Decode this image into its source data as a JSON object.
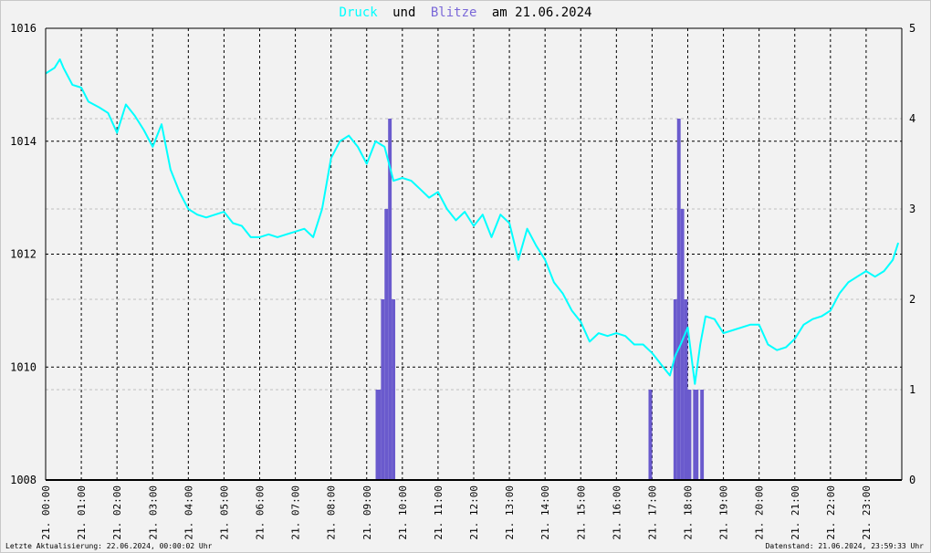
{
  "title": {
    "word1": "Druck",
    "word2": "und",
    "word3": "Blitze",
    "word4": "am 21.06.2024",
    "color1": "#00ffff",
    "color3": "#7a68d8",
    "color_text": "#000000"
  },
  "footer": {
    "left": "Letzte Aktualisierung: 22.06.2024, 00:00:02 Uhr",
    "right": "Datenstand: 21.06.2024, 23:59:33 Uhr"
  },
  "chart_data": {
    "type": "line",
    "x_tick_labels": [
      "21. 00:00",
      "21. 01:00",
      "21. 02:00",
      "21. 03:00",
      "21. 04:00",
      "21. 05:00",
      "21. 06:00",
      "21. 07:00",
      "21. 08:00",
      "21. 09:00",
      "21. 10:00",
      "21. 11:00",
      "21. 12:00",
      "21. 13:00",
      "21. 14:00",
      "21. 15:00",
      "21. 16:00",
      "21. 17:00",
      "21. 18:00",
      "21. 19:00",
      "21. 20:00",
      "21. 21:00",
      "21. 22:00",
      "21. 23:00"
    ],
    "xlim_hours": [
      0,
      24
    ],
    "y_left": {
      "ticks": [
        1008,
        1010,
        1012,
        1014,
        1016
      ],
      "ylim": [
        1008,
        1016
      ]
    },
    "y_right": {
      "ticks": [
        0,
        1,
        2,
        3,
        4,
        5
      ],
      "ylim": [
        0,
        5
      ]
    },
    "grid": true,
    "series": [
      {
        "name": "Druck",
        "color": "#00ffff",
        "axis": "left",
        "x": [
          0,
          0.25,
          0.4,
          0.5,
          0.75,
          1.0,
          1.2,
          1.5,
          1.75,
          2.0,
          2.25,
          2.5,
          2.75,
          3.0,
          3.25,
          3.5,
          3.75,
          4.0,
          4.25,
          4.5,
          4.75,
          5.0,
          5.25,
          5.5,
          5.75,
          6.0,
          6.25,
          6.5,
          6.75,
          7.0,
          7.25,
          7.5,
          7.75,
          8.0,
          8.25,
          8.5,
          8.75,
          9.0,
          9.25,
          9.5,
          9.75,
          10.0,
          10.25,
          10.5,
          10.75,
          11.0,
          11.25,
          11.5,
          11.75,
          12.0,
          12.25,
          12.5,
          12.75,
          13.0,
          13.25,
          13.5,
          13.75,
          14.0,
          14.25,
          14.5,
          14.75,
          15.0,
          15.25,
          15.5,
          15.75,
          16.0,
          16.25,
          16.5,
          16.75,
          17.0,
          17.25,
          17.5,
          17.65,
          17.8,
          18.0,
          18.2,
          18.35,
          18.5,
          18.75,
          19.0,
          19.25,
          19.5,
          19.75,
          20.0,
          20.25,
          20.5,
          20.75,
          21.0,
          21.25,
          21.5,
          21.75,
          22.0,
          22.25,
          22.5,
          22.75,
          23.0,
          23.25,
          23.5,
          23.75,
          23.9
        ],
        "y": [
          1015.2,
          1015.3,
          1015.45,
          1015.3,
          1015.0,
          1014.95,
          1014.7,
          1014.6,
          1014.5,
          1014.15,
          1014.65,
          1014.45,
          1014.2,
          1013.9,
          1014.3,
          1013.5,
          1013.1,
          1012.8,
          1012.7,
          1012.65,
          1012.7,
          1012.75,
          1012.55,
          1012.5,
          1012.3,
          1012.3,
          1012.35,
          1012.3,
          1012.35,
          1012.4,
          1012.45,
          1012.3,
          1012.8,
          1013.7,
          1014.0,
          1014.1,
          1013.9,
          1013.6,
          1014.0,
          1013.9,
          1013.3,
          1013.35,
          1013.3,
          1013.15,
          1013.0,
          1013.1,
          1012.8,
          1012.6,
          1012.75,
          1012.5,
          1012.7,
          1012.3,
          1012.7,
          1012.55,
          1011.9,
          1012.45,
          1012.15,
          1011.9,
          1011.5,
          1011.3,
          1011.0,
          1010.8,
          1010.45,
          1010.6,
          1010.55,
          1010.6,
          1010.55,
          1010.4,
          1010.4,
          1010.25,
          1010.05,
          1009.85,
          1010.2,
          1010.4,
          1010.7,
          1009.7,
          1010.4,
          1010.9,
          1010.85,
          1010.6,
          1010.65,
          1010.7,
          1010.75,
          1010.75,
          1010.4,
          1010.3,
          1010.35,
          1010.5,
          1010.75,
          1010.85,
          1010.9,
          1011.0,
          1011.3,
          1011.5,
          1011.6,
          1011.7,
          1011.6,
          1011.7,
          1011.9,
          1012.2
        ]
      },
      {
        "name": "Blitze",
        "color": "#6a5acd",
        "axis": "right",
        "bins": [
          [
            9.25,
            9.4,
            1
          ],
          [
            9.4,
            9.5,
            2
          ],
          [
            9.5,
            9.6,
            3
          ],
          [
            9.6,
            9.7,
            4
          ],
          [
            9.7,
            9.8,
            2
          ],
          [
            16.9,
            17.0,
            1
          ],
          [
            17.6,
            17.7,
            2
          ],
          [
            17.7,
            17.8,
            4
          ],
          [
            17.8,
            17.9,
            3
          ],
          [
            17.9,
            18.0,
            2
          ],
          [
            18.0,
            18.1,
            1
          ],
          [
            18.15,
            18.3,
            1
          ],
          [
            18.35,
            18.45,
            1
          ]
        ]
      }
    ]
  }
}
